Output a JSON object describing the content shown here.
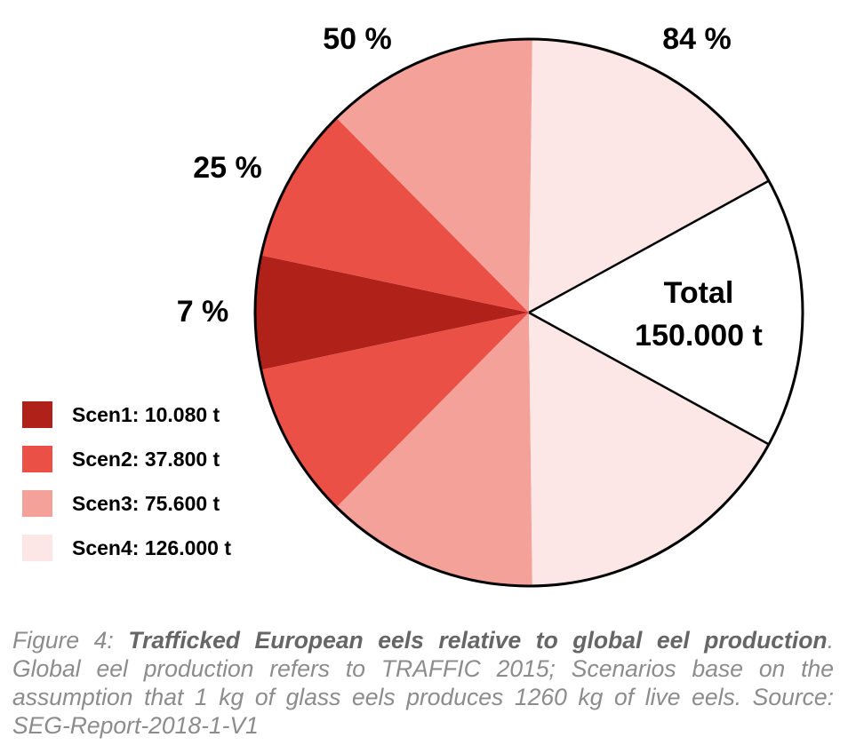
{
  "chart_data": {
    "type": "pie",
    "total": 150000,
    "total_label": [
      "Total",
      "150.000 t"
    ],
    "slices": [
      {
        "name": "Scen1",
        "value": 10080,
        "color": "#b0211a"
      },
      {
        "name": "Scen2",
        "value": 37800,
        "color": "#eb5046"
      },
      {
        "name": "Scen3",
        "value": 75600,
        "color": "#f4a19a"
      },
      {
        "name": "Scen4",
        "value": 126000,
        "color": "#fde7e6"
      }
    ],
    "percent_labels": [
      "7 %",
      "25 %",
      "50 %",
      "84 %"
    ],
    "legend": [
      {
        "label": "Scen1: 10.080 t",
        "color": "#b0211a"
      },
      {
        "label": "Scen2: 37.800 t",
        "color": "#eb5046"
      },
      {
        "label": "Scen3: 75.600 t",
        "color": "#f4a19a"
      },
      {
        "label": "Scen4: 126.000 t",
        "color": "#fde7e6"
      }
    ],
    "legend_position": "bottom-left"
  },
  "caption": {
    "prefix": "Figure 4: ",
    "bold": "Trafficked European eels relative to global eel production",
    "rest": ". Global eel production refers to TRAFFIC 2015; Scenarios base on the assumption that 1 kg of glass eels produces 1260 kg of live eels. Source: SEG-Report-2018-1-V1"
  }
}
